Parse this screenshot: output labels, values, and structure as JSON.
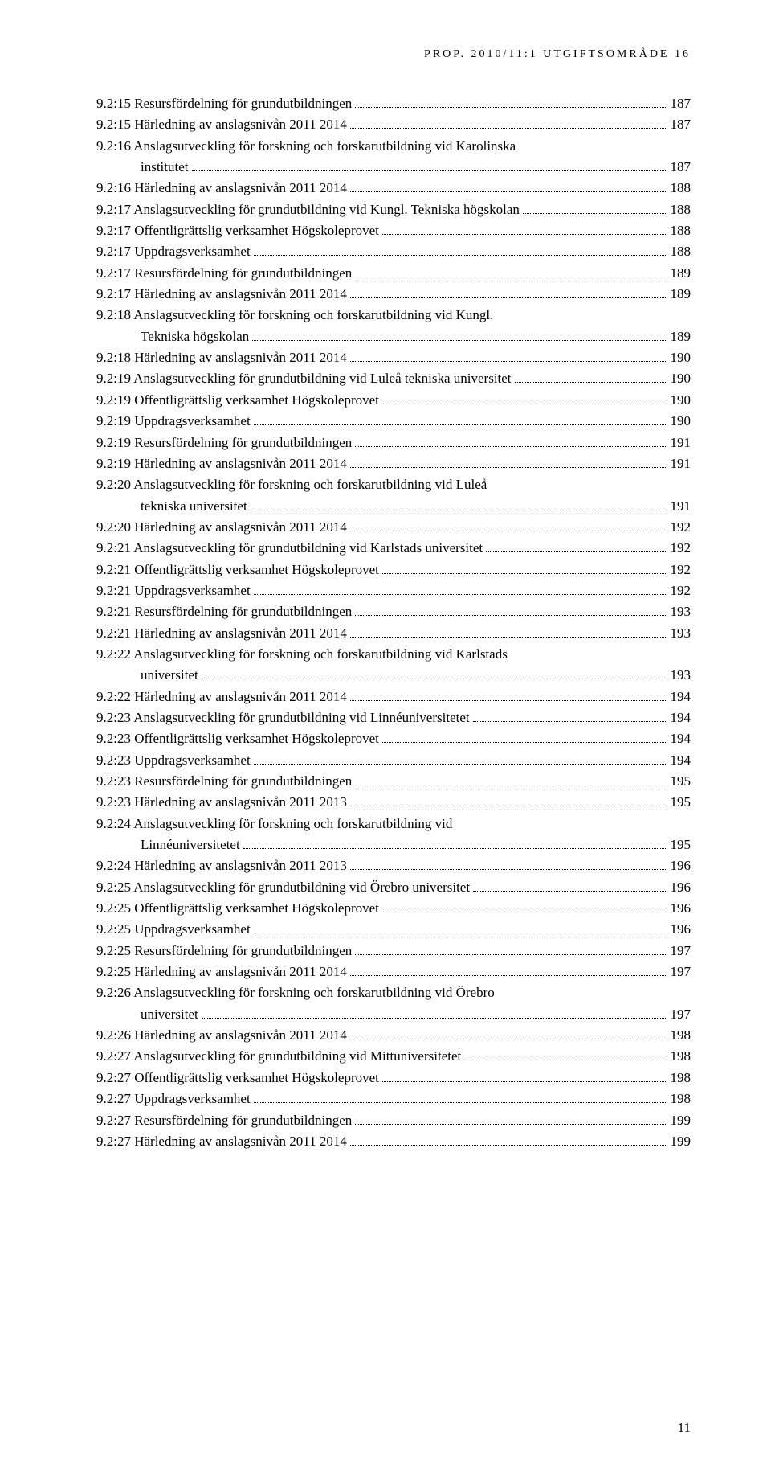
{
  "header": "PROP. 2010/11:1 UTGIFTSOMRÅDE 16",
  "page_number": "11",
  "toc": [
    {
      "label": "9.2:15 Resursfördelning för grundutbildningen",
      "page": "187",
      "indent": false
    },
    {
      "label": "9.2:15 Härledning av anslagsnivån 2011 2014",
      "page": "187",
      "indent": false
    },
    {
      "label": "9.2:16 Anslagsutveckling för forskning och forskarutbildning vid Karolinska",
      "page": null,
      "indent": false
    },
    {
      "label": "institutet",
      "page": "187",
      "indent": true
    },
    {
      "label": "9.2:16 Härledning av anslagsnivån 2011 2014",
      "page": "188",
      "indent": false
    },
    {
      "label": "9.2:17 Anslagsutveckling för grundutbildning vid Kungl. Tekniska högskolan",
      "page": "188",
      "indent": false
    },
    {
      "label": "9.2:17 Offentligrättslig verksamhet Högskoleprovet",
      "page": "188",
      "indent": false
    },
    {
      "label": "9.2:17 Uppdragsverksamhet",
      "page": "188",
      "indent": false
    },
    {
      "label": "9.2:17 Resursfördelning för grundutbildningen",
      "page": "189",
      "indent": false
    },
    {
      "label": "9.2:17 Härledning av anslagsnivån 2011 2014",
      "page": "189",
      "indent": false
    },
    {
      "label": "9.2:18 Anslagsutveckling för forskning och forskarutbildning vid Kungl.",
      "page": null,
      "indent": false
    },
    {
      "label": "Tekniska högskolan",
      "page": "189",
      "indent": true
    },
    {
      "label": "9.2:18 Härledning av anslagsnivån 2011 2014",
      "page": "190",
      "indent": false
    },
    {
      "label": "9.2:19 Anslagsutveckling för grundutbildning vid Luleå tekniska universitet",
      "page": "190",
      "indent": false
    },
    {
      "label": "9.2:19 Offentligrättslig verksamhet Högskoleprovet",
      "page": "190",
      "indent": false
    },
    {
      "label": "9.2:19 Uppdragsverksamhet",
      "page": "190",
      "indent": false
    },
    {
      "label": "9.2:19 Resursfördelning för grundutbildningen",
      "page": "191",
      "indent": false
    },
    {
      "label": "9.2:19 Härledning av anslagsnivån 2011 2014",
      "page": "191",
      "indent": false
    },
    {
      "label": "9.2:20 Anslagsutveckling för forskning och forskarutbildning vid Luleå",
      "page": null,
      "indent": false
    },
    {
      "label": "tekniska universitet",
      "page": "191",
      "indent": true
    },
    {
      "label": "9.2:20 Härledning av anslagsnivån 2011 2014",
      "page": "192",
      "indent": false
    },
    {
      "label": "9.2:21 Anslagsutveckling för grundutbildning vid Karlstads universitet",
      "page": "192",
      "indent": false
    },
    {
      "label": "9.2:21 Offentligrättslig verksamhet Högskoleprovet",
      "page": "192",
      "indent": false
    },
    {
      "label": "9.2:21 Uppdragsverksamhet",
      "page": "192",
      "indent": false
    },
    {
      "label": "9.2:21 Resursfördelning för grundutbildningen",
      "page": "193",
      "indent": false
    },
    {
      "label": "9.2:21 Härledning av anslagsnivån 2011 2014",
      "page": "193",
      "indent": false
    },
    {
      "label": "9.2:22 Anslagsutveckling för forskning och forskarutbildning vid Karlstads",
      "page": null,
      "indent": false
    },
    {
      "label": "universitet",
      "page": "193",
      "indent": true
    },
    {
      "label": "9.2:22 Härledning av anslagsnivån 2011 2014",
      "page": "194",
      "indent": false
    },
    {
      "label": "9.2:23 Anslagsutveckling för grundutbildning vid Linnéuniversitetet",
      "page": "194",
      "indent": false
    },
    {
      "label": "9.2:23 Offentligrättslig verksamhet Högskoleprovet",
      "page": "194",
      "indent": false
    },
    {
      "label": "9.2:23 Uppdragsverksamhet",
      "page": "194",
      "indent": false
    },
    {
      "label": "9.2:23 Resursfördelning för grundutbildningen",
      "page": "195",
      "indent": false
    },
    {
      "label": "9.2:23 Härledning av anslagsnivån 2011 2013",
      "page": "195",
      "indent": false
    },
    {
      "label": "9.2:24 Anslagsutveckling för forskning och forskarutbildning vid",
      "page": null,
      "indent": false
    },
    {
      "label": "Linnéuniversitetet",
      "page": "195",
      "indent": true
    },
    {
      "label": "9.2:24 Härledning av anslagsnivån 2011 2013",
      "page": "196",
      "indent": false
    },
    {
      "label": "9.2:25 Anslagsutveckling för grundutbildning vid Örebro universitet",
      "page": "196",
      "indent": false
    },
    {
      "label": "9.2:25 Offentligrättslig verksamhet Högskoleprovet",
      "page": "196",
      "indent": false
    },
    {
      "label": "9.2:25 Uppdragsverksamhet",
      "page": "196",
      "indent": false
    },
    {
      "label": "9.2:25 Resursfördelning för grundutbildningen",
      "page": "197",
      "indent": false
    },
    {
      "label": "9.2:25 Härledning av anslagsnivån 2011 2014",
      "page": "197",
      "indent": false
    },
    {
      "label": "9.2:26 Anslagsutveckling för forskning och forskarutbildning vid Örebro",
      "page": null,
      "indent": false
    },
    {
      "label": "universitet",
      "page": "197",
      "indent": true
    },
    {
      "label": "9.2:26 Härledning av anslagsnivån 2011 2014",
      "page": "198",
      "indent": false
    },
    {
      "label": "9.2:27 Anslagsutveckling för grundutbildning vid Mittuniversitetet",
      "page": "198",
      "indent": false
    },
    {
      "label": "9.2:27 Offentligrättslig verksamhet Högskoleprovet",
      "page": "198",
      "indent": false
    },
    {
      "label": "9.2:27 Uppdragsverksamhet",
      "page": "198",
      "indent": false
    },
    {
      "label": "9.2:27 Resursfördelning för grundutbildningen",
      "page": "199",
      "indent": false
    },
    {
      "label": "9.2:27 Härledning av anslagsnivån 2011 2014",
      "page": "199",
      "indent": false
    }
  ]
}
